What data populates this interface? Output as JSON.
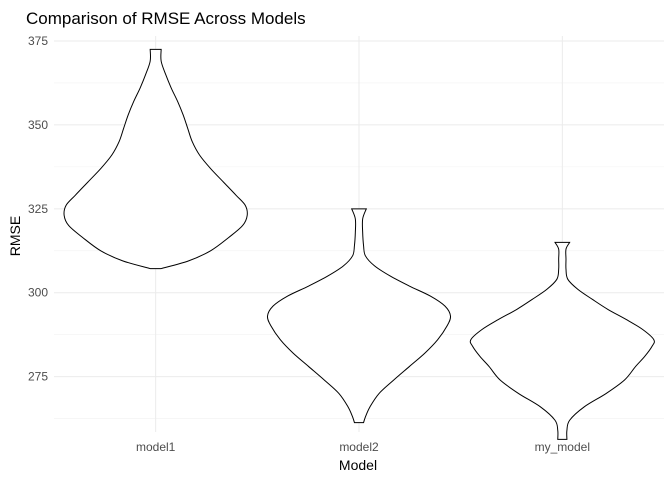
{
  "chart_data": {
    "type": "violin",
    "title": "Comparison of RMSE Across Models",
    "xlabel": "Model",
    "ylabel": "RMSE",
    "categories": [
      "model1",
      "model2",
      "my_model"
    ],
    "ylim": [
      258.5,
      376.5
    ],
    "yticks": [
      275,
      300,
      325,
      350,
      375
    ],
    "grid": true,
    "legend": "none",
    "violins": [
      {
        "category": "model1",
        "profile": [
          [
            307.2,
            0.06
          ],
          [
            309.5,
            0.36
          ],
          [
            312.5,
            0.6
          ],
          [
            316.5,
            0.8
          ],
          [
            320,
            0.95
          ],
          [
            323,
            1.0
          ],
          [
            326,
            0.98
          ],
          [
            329,
            0.88
          ],
          [
            333,
            0.74
          ],
          [
            337,
            0.6
          ],
          [
            341,
            0.48
          ],
          [
            345,
            0.4
          ],
          [
            349,
            0.35
          ],
          [
            353,
            0.3
          ],
          [
            357,
            0.24
          ],
          [
            361,
            0.17
          ],
          [
            365,
            0.11
          ],
          [
            369,
            0.06
          ],
          [
            372.5,
            0.06
          ]
        ]
      },
      {
        "category": "model2",
        "profile": [
          [
            261.3,
            0.05
          ],
          [
            263,
            0.07
          ],
          [
            266,
            0.12
          ],
          [
            270,
            0.22
          ],
          [
            274,
            0.38
          ],
          [
            278,
            0.55
          ],
          [
            282,
            0.72
          ],
          [
            286,
            0.86
          ],
          [
            290,
            0.96
          ],
          [
            293,
            1.0
          ],
          [
            296,
            0.94
          ],
          [
            299,
            0.78
          ],
          [
            302,
            0.55
          ],
          [
            305,
            0.34
          ],
          [
            308,
            0.17
          ],
          [
            311,
            0.07
          ],
          [
            314,
            0.05
          ],
          [
            318,
            0.04
          ],
          [
            322,
            0.04
          ],
          [
            325,
            0.08
          ]
        ]
      },
      {
        "category": "my_model",
        "profile": [
          [
            256.3,
            0.05
          ],
          [
            259,
            0.05
          ],
          [
            262,
            0.08
          ],
          [
            266,
            0.24
          ],
          [
            270,
            0.48
          ],
          [
            274,
            0.68
          ],
          [
            278,
            0.8
          ],
          [
            281,
            0.9
          ],
          [
            284,
            0.98
          ],
          [
            286,
            1.0
          ],
          [
            289,
            0.88
          ],
          [
            292,
            0.7
          ],
          [
            295,
            0.5
          ],
          [
            298,
            0.33
          ],
          [
            301,
            0.17
          ],
          [
            304,
            0.06
          ],
          [
            307,
            0.04
          ],
          [
            310,
            0.04
          ],
          [
            313,
            0.04
          ],
          [
            315,
            0.08
          ]
        ]
      }
    ]
  }
}
